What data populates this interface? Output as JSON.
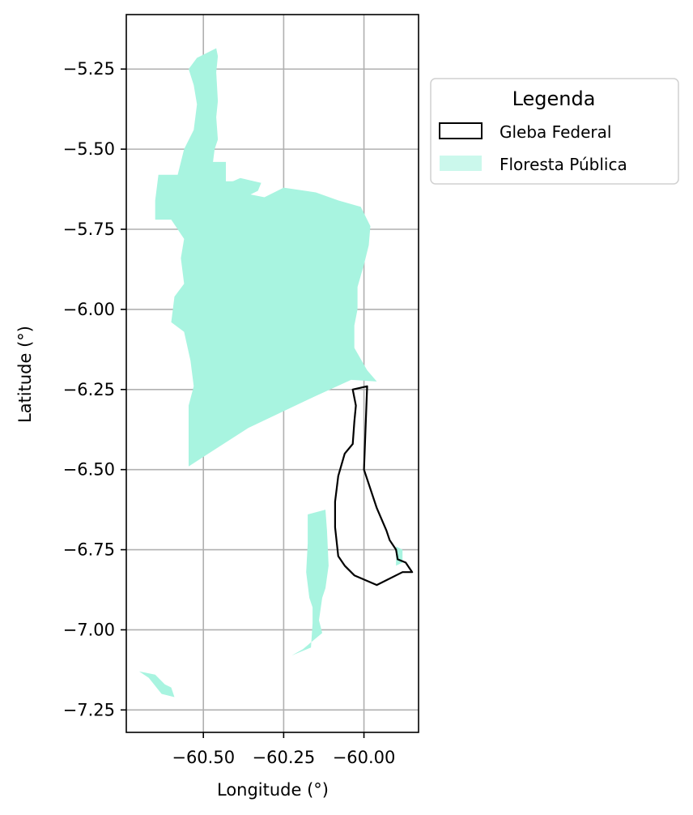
{
  "map": {
    "xlabel": "Longitude (°)",
    "ylabel": "Latitude (°)",
    "x_ticks": [
      -60.5,
      -60.25,
      -60.0
    ],
    "x_tick_labels": [
      "−60.50",
      "−60.25",
      "−60.00"
    ],
    "y_ticks": [
      -5.25,
      -5.5,
      -5.75,
      -6.0,
      -6.25,
      -6.5,
      -6.75,
      -7.0,
      -7.25
    ],
    "y_tick_labels": [
      "−5.25",
      "−5.50",
      "−5.75",
      "−6.00",
      "−6.25",
      "−6.50",
      "−6.75",
      "−7.00",
      "−7.25"
    ],
    "xlim": [
      -60.74,
      -59.83
    ],
    "ylim": [
      -7.32,
      -5.08
    ],
    "grid": true,
    "legend": {
      "title": "Legenda",
      "placement": "outside-right-top",
      "items": [
        {
          "label": "Gleba Federal",
          "style": "outline",
          "color": "#000000"
        },
        {
          "label": "Floresta Pública",
          "style": "fill",
          "color": "#a8f4e0"
        }
      ]
    },
    "colors": {
      "forest": "#a8f4e0",
      "gleba": "#000000",
      "grid": "#b0b0b0"
    },
    "layers": {
      "floresta_publica": [
        [
          [
            -60.546,
            -5.25
          ],
          [
            -60.52,
            -5.215
          ],
          [
            -60.49,
            -5.2
          ],
          [
            -60.46,
            -5.185
          ],
          [
            -60.455,
            -5.21
          ],
          [
            -60.46,
            -5.26
          ],
          [
            -60.455,
            -5.35
          ],
          [
            -60.46,
            -5.4
          ],
          [
            -60.455,
            -5.47
          ],
          [
            -60.465,
            -5.5
          ],
          [
            -60.47,
            -5.54
          ],
          [
            -60.43,
            -5.54
          ],
          [
            -60.43,
            -5.6
          ],
          [
            -60.4,
            -5.6
          ],
          [
            -60.36,
            -5.64
          ],
          [
            -60.31,
            -5.65
          ],
          [
            -60.25,
            -5.62
          ],
          [
            -60.15,
            -5.635
          ],
          [
            -60.08,
            -5.66
          ],
          [
            -60.01,
            -5.68
          ],
          [
            -59.98,
            -5.74
          ],
          [
            -59.985,
            -5.8
          ],
          [
            -60.0,
            -5.86
          ],
          [
            -60.02,
            -5.93
          ],
          [
            -60.02,
            -6.0
          ],
          [
            -60.03,
            -6.05
          ],
          [
            -60.03,
            -6.12
          ],
          [
            -59.99,
            -6.19
          ],
          [
            -59.96,
            -6.225
          ],
          [
            -60.04,
            -6.22
          ],
          [
            -60.15,
            -6.27
          ],
          [
            -60.36,
            -6.37
          ],
          [
            -60.546,
            -6.49
          ],
          [
            -60.546,
            -6.3
          ],
          [
            -60.53,
            -6.24
          ],
          [
            -60.54,
            -6.16
          ],
          [
            -60.56,
            -6.07
          ],
          [
            -60.6,
            -6.04
          ],
          [
            -60.59,
            -5.96
          ],
          [
            -60.56,
            -5.92
          ],
          [
            -60.57,
            -5.84
          ],
          [
            -60.56,
            -5.78
          ],
          [
            -60.6,
            -5.72
          ],
          [
            -60.65,
            -5.72
          ],
          [
            -60.65,
            -5.66
          ],
          [
            -60.64,
            -5.58
          ],
          [
            -60.58,
            -5.58
          ],
          [
            -60.56,
            -5.5
          ],
          [
            -60.53,
            -5.44
          ],
          [
            -60.52,
            -5.36
          ],
          [
            -60.53,
            -5.3
          ]
        ],
        [
          [
            -60.43,
            -5.61
          ],
          [
            -60.385,
            -5.59
          ],
          [
            -60.32,
            -5.605
          ],
          [
            -60.33,
            -5.63
          ],
          [
            -60.38,
            -5.655
          ],
          [
            -60.43,
            -5.63
          ]
        ],
        [
          [
            -60.175,
            -6.64
          ],
          [
            -60.12,
            -6.625
          ],
          [
            -60.115,
            -6.69
          ],
          [
            -60.11,
            -6.8
          ],
          [
            -60.12,
            -6.87
          ],
          [
            -60.13,
            -6.9
          ],
          [
            -60.14,
            -6.97
          ],
          [
            -60.13,
            -7.01
          ],
          [
            -60.19,
            -7.06
          ],
          [
            -60.225,
            -7.08
          ],
          [
            -60.165,
            -7.055
          ],
          [
            -60.16,
            -6.98
          ],
          [
            -60.16,
            -6.93
          ],
          [
            -60.17,
            -6.9
          ],
          [
            -60.18,
            -6.82
          ],
          [
            -60.175,
            -6.73
          ]
        ],
        [
          [
            -60.7,
            -7.13
          ],
          [
            -60.65,
            -7.14
          ],
          [
            -60.62,
            -7.17
          ],
          [
            -60.6,
            -7.18
          ],
          [
            -60.59,
            -7.21
          ],
          [
            -60.63,
            -7.2
          ],
          [
            -60.67,
            -7.15
          ]
        ],
        [
          [
            -59.9,
            -6.74
          ],
          [
            -59.88,
            -6.75
          ],
          [
            -59.88,
            -6.79
          ],
          [
            -59.9,
            -6.8
          ]
        ]
      ],
      "gleba_federal": [
        [
          [
            -60.035,
            -6.25
          ],
          [
            -59.99,
            -6.24
          ],
          [
            -60.0,
            -6.5
          ],
          [
            -59.96,
            -6.62
          ],
          [
            -59.93,
            -6.69
          ],
          [
            -59.92,
            -6.72
          ],
          [
            -59.9,
            -6.75
          ],
          [
            -59.895,
            -6.78
          ],
          [
            -59.87,
            -6.79
          ],
          [
            -59.85,
            -6.82
          ],
          [
            -59.88,
            -6.82
          ],
          [
            -59.96,
            -6.86
          ],
          [
            -60.03,
            -6.83
          ],
          [
            -60.06,
            -6.8
          ],
          [
            -60.08,
            -6.77
          ],
          [
            -60.09,
            -6.68
          ],
          [
            -60.09,
            -6.6
          ],
          [
            -60.08,
            -6.52
          ],
          [
            -60.06,
            -6.45
          ],
          [
            -60.035,
            -6.42
          ],
          [
            -60.03,
            -6.35
          ],
          [
            -60.025,
            -6.3
          ]
        ]
      ]
    }
  }
}
